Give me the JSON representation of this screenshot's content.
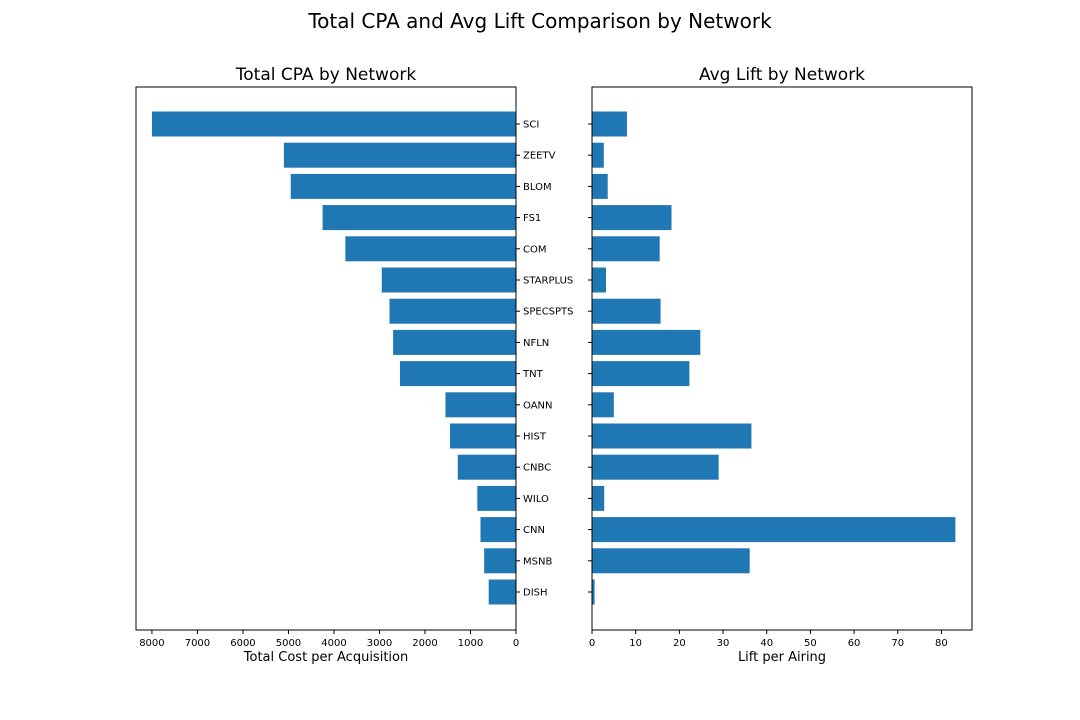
{
  "title": "Total CPA and Avg Lift Comparison by Network",
  "colors": {
    "bar": "#1f77b4",
    "axis": "#000000",
    "background": "#ffffff"
  },
  "chart_data": [
    {
      "type": "bar",
      "orientation": "horizontal",
      "x_direction": "inverted",
      "title": "Total CPA by Network",
      "xlabel": "Total Cost per Acquisition",
      "ylabel": "",
      "xlim": [
        8350,
        0
      ],
      "xticks": [
        8000,
        7000,
        6000,
        5000,
        4000,
        3000,
        2000,
        1000,
        0
      ],
      "grid": false,
      "categories": [
        "SCI",
        "ZEETV",
        "BLOM",
        "FS1",
        "COM",
        "STARPLUS",
        "SPECSPTS",
        "NFLN",
        "TNT",
        "OANN",
        "HIST",
        "CNBC",
        "WILO",
        "CNN",
        "MSNB",
        "DISH"
      ],
      "values": [
        8000,
        5100,
        4950,
        4250,
        3750,
        2950,
        2780,
        2700,
        2550,
        1550,
        1450,
        1280,
        850,
        780,
        700,
        600
      ]
    },
    {
      "type": "bar",
      "orientation": "horizontal",
      "title": "Avg Lift by Network",
      "xlabel": "Lift per Airing",
      "ylabel": "",
      "xlim": [
        0,
        87
      ],
      "xticks": [
        0,
        10,
        20,
        30,
        40,
        50,
        60,
        70,
        80
      ],
      "grid": false,
      "categories": [
        "SCI",
        "ZEETV",
        "BLOM",
        "FS1",
        "COM",
        "STARPLUS",
        "SPECSPTS",
        "NFLN",
        "TNT",
        "OANN",
        "HIST",
        "CNBC",
        "WILO",
        "CNN",
        "MSNB",
        "DISH"
      ],
      "values": [
        8,
        2.7,
        3.6,
        18.2,
        15.5,
        3.2,
        15.7,
        24.8,
        22.3,
        5,
        36.5,
        29,
        2.8,
        83.2,
        36.1,
        0.6
      ]
    }
  ]
}
